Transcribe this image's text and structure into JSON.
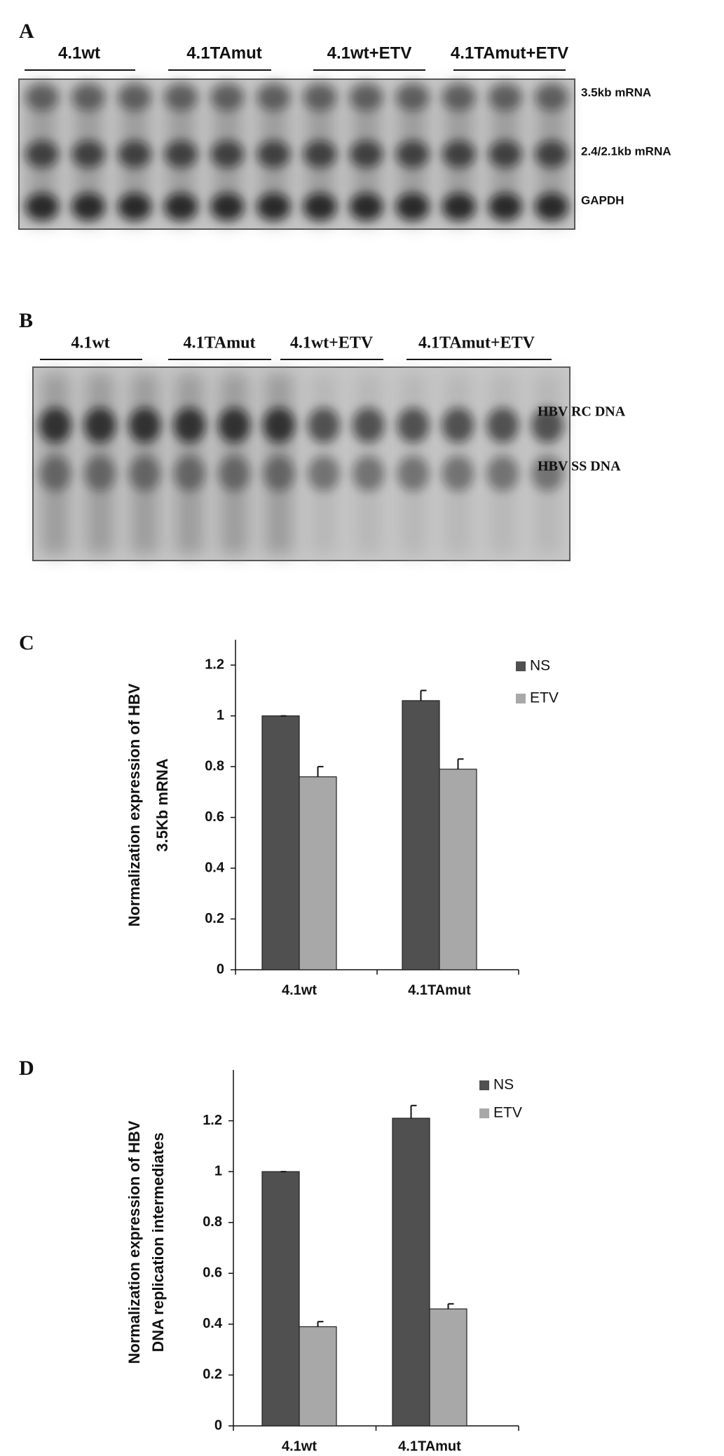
{
  "blots": [
    {
      "panel": "A",
      "groups": [
        "4.1wt",
        "4.1TAmut",
        "4.1wt+ETV",
        "4.1TAmut+ETV"
      ],
      "bands": [
        "3.5kb mRNA",
        "2.4/2.1kb mRNA",
        "GAPDH"
      ]
    },
    {
      "panel": "B",
      "groups": [
        "4.1wt",
        "4.1TAmut",
        "4.1wt+ETV",
        "4.1TAmut+ETV"
      ],
      "bands": [
        "HBV RC DNA",
        "HBV SS DNA"
      ]
    }
  ],
  "chart_data": [
    {
      "type": "bar",
      "panel": "C",
      "ylabel": [
        "Normalization expression of HBV",
        "3.5Kb mRNA"
      ],
      "categories": [
        "4.1wt",
        "4.1TAmut"
      ],
      "series": [
        {
          "name": "NS",
          "color": "#505050",
          "values": [
            1,
            1.06
          ],
          "errors": [
            0,
            0.04
          ]
        },
        {
          "name": "ETV",
          "color": "#a8a8a8",
          "values": [
            0.76,
            0.79
          ],
          "errors": [
            0.04,
            0.04
          ]
        }
      ],
      "ylim": [
        0,
        1.3
      ],
      "yticks": [
        0,
        0.2,
        0.4,
        0.6,
        0.8,
        1,
        1.2
      ],
      "legend": "top right"
    },
    {
      "type": "bar",
      "panel": "D",
      "ylabel": [
        "Normalization expression of HBV",
        "DNA replication intermediates"
      ],
      "categories": [
        "4.1wt",
        "4.1TAmut"
      ],
      "series": [
        {
          "name": "NS",
          "color": "#505050",
          "values": [
            1,
            1.21
          ],
          "errors": [
            0,
            0.05
          ]
        },
        {
          "name": "ETV",
          "color": "#a8a8a8",
          "values": [
            0.39,
            0.46
          ],
          "errors": [
            0.02,
            0.02
          ]
        }
      ],
      "ylim": [
        0,
        1.4
      ],
      "yticks": [
        0,
        0.2,
        0.4,
        0.6,
        0.8,
        1,
        1.2
      ],
      "legend": "top right"
    }
  ]
}
